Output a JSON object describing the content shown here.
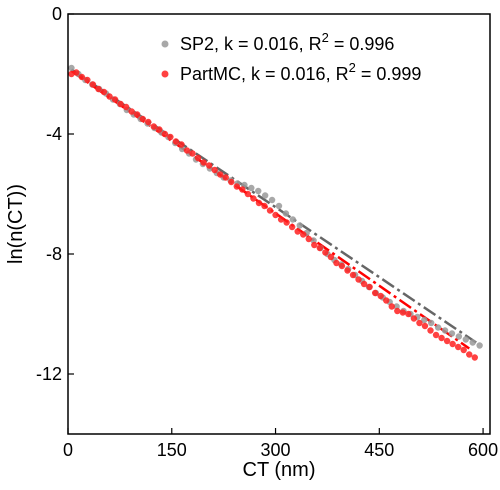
{
  "chart_data": {
    "type": "scatter",
    "xlabel": "CT (nm)",
    "ylabel": "ln(n(CT))",
    "xlim": [
      0,
      610
    ],
    "ylim": [
      -14,
      0
    ],
    "x_ticks": [
      0,
      150,
      300,
      450,
      600
    ],
    "y_ticks": [
      0,
      -4,
      -8,
      -12
    ],
    "x_tick_labels": [
      "0",
      "150",
      "300",
      "450",
      "600"
    ],
    "y_tick_labels": [
      "0",
      "-4",
      "-8",
      "-12"
    ],
    "legend_position": "top-right",
    "series": [
      {
        "name": "SP2, k = 0.016, R",
        "legend_sup": "2",
        "legend_suffix": " = 0.996",
        "color": "#999999",
        "fit_color": "#666666",
        "fit_line": {
          "x": [
            5,
            590
          ],
          "y": [
            -1.85,
            -10.95
          ]
        },
        "x": [
          5,
          15,
          25,
          35,
          45,
          55,
          65,
          75,
          85,
          95,
          105,
          115,
          125,
          135,
          145,
          155,
          165,
          175,
          185,
          195,
          205,
          215,
          225,
          235,
          245,
          255,
          265,
          275,
          285,
          295,
          305,
          315,
          325,
          335,
          345,
          355,
          365,
          375,
          385,
          395,
          405,
          415,
          425,
          435,
          445,
          455,
          465,
          475,
          485,
          495,
          505,
          515,
          525,
          535,
          545,
          555,
          565,
          575,
          585,
          595
        ],
        "y": [
          -1.8,
          -2.0,
          -2.2,
          -2.35,
          -2.5,
          -2.65,
          -2.85,
          -3.0,
          -3.2,
          -3.35,
          -3.5,
          -3.65,
          -3.8,
          -3.95,
          -4.1,
          -4.3,
          -4.5,
          -4.65,
          -4.85,
          -5.0,
          -5.15,
          -5.3,
          -5.45,
          -5.55,
          -5.65,
          -5.7,
          -5.8,
          -5.9,
          -6.05,
          -6.2,
          -6.4,
          -6.65,
          -6.85,
          -7.05,
          -7.3,
          -7.55,
          -7.8,
          -8.0,
          -8.2,
          -8.35,
          -8.5,
          -8.7,
          -8.9,
          -9.1,
          -9.3,
          -9.45,
          -9.6,
          -9.75,
          -9.9,
          -10.0,
          -10.1,
          -10.2,
          -10.3,
          -10.45,
          -10.55,
          -10.65,
          -10.75,
          -10.85,
          -10.95,
          -11.05
        ]
      },
      {
        "name": "PartMC, k = 0.016, R",
        "legend_sup": "2",
        "legend_suffix": " = 0.999",
        "color": "#ff2020",
        "fit_color": "#ff0000",
        "fit_line": {
          "x": [
            5,
            580
          ],
          "y": [
            -1.9,
            -11.15
          ]
        },
        "x": [
          5,
          12,
          20,
          28,
          36,
          44,
          52,
          60,
          68,
          76,
          84,
          92,
          100,
          108,
          116,
          124,
          132,
          140,
          148,
          156,
          164,
          172,
          180,
          188,
          196,
          204,
          212,
          220,
          228,
          236,
          244,
          252,
          260,
          268,
          276,
          284,
          292,
          300,
          308,
          316,
          324,
          332,
          340,
          348,
          356,
          364,
          372,
          380,
          388,
          396,
          404,
          412,
          420,
          428,
          436,
          444,
          452,
          460,
          468,
          476,
          484,
          492,
          500,
          508,
          516,
          524,
          532,
          540,
          548,
          556,
          564,
          572,
          580,
          588
        ],
        "y": [
          -2.0,
          -1.95,
          -2.1,
          -2.2,
          -2.35,
          -2.5,
          -2.6,
          -2.75,
          -2.85,
          -3.0,
          -3.1,
          -3.25,
          -3.35,
          -3.5,
          -3.6,
          -3.75,
          -3.85,
          -4.0,
          -4.1,
          -4.25,
          -4.35,
          -4.55,
          -4.65,
          -4.8,
          -4.95,
          -5.05,
          -5.2,
          -5.35,
          -5.45,
          -5.6,
          -5.75,
          -5.85,
          -6.0,
          -6.15,
          -6.3,
          -6.4,
          -6.55,
          -6.7,
          -6.85,
          -6.95,
          -7.1,
          -7.25,
          -7.35,
          -7.5,
          -7.7,
          -7.8,
          -7.95,
          -8.1,
          -8.3,
          -8.4,
          -8.55,
          -8.7,
          -8.85,
          -9.0,
          -9.1,
          -9.3,
          -9.4,
          -9.55,
          -9.75,
          -9.9,
          -9.95,
          -10.0,
          -10.15,
          -10.3,
          -10.4,
          -10.55,
          -10.7,
          -10.8,
          -10.9,
          -11.0,
          -11.1,
          -11.2,
          -11.35,
          -11.45
        ]
      }
    ]
  }
}
